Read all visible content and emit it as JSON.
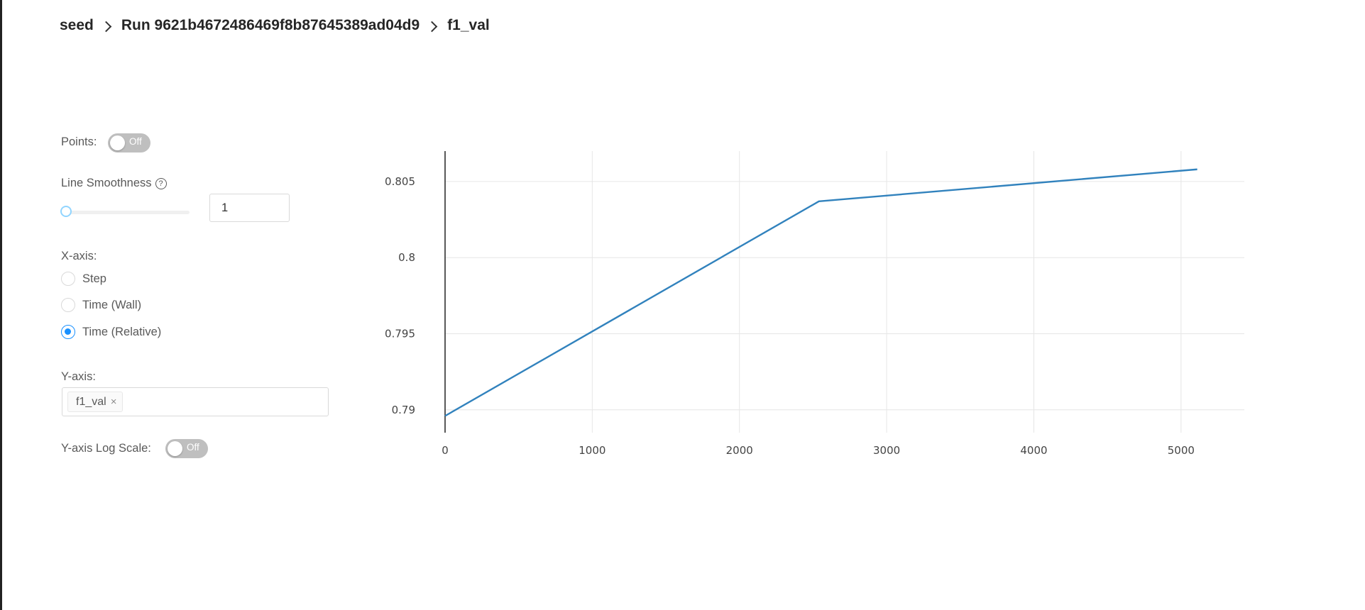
{
  "breadcrumb": {
    "items": [
      "seed",
      "Run 9621b4672486469f8b87645389ad04d9",
      "f1_val"
    ]
  },
  "controls": {
    "points_label": "Points:",
    "points_toggle": "Off",
    "smoothness_label": "Line Smoothness",
    "smoothness_help": "?",
    "smoothness_value": "1",
    "smoothness_slider_level": 0,
    "xaxis_label": "X-axis:",
    "xaxis_options": [
      "Step",
      "Time (Wall)",
      "Time (Relative)"
    ],
    "xaxis_selected": "Time (Relative)",
    "yaxis_label": "Y-axis:",
    "yaxis_tags": [
      "f1_val"
    ],
    "yaxis_tag_close": "×",
    "logscale_label": "Y-axis Log Scale:",
    "logscale_toggle": "Off"
  },
  "colors": {
    "line": "#3182bd",
    "accent": "#1890ff",
    "grid": "#e6e6e6"
  },
  "chart_data": {
    "type": "line",
    "title": "",
    "xlabel": "",
    "ylabel": "",
    "x": [
      0,
      2540,
      5110
    ],
    "series": [
      {
        "values": [
          0.7896,
          0.8037,
          0.8058
        ]
      }
    ],
    "xlim": [
      0,
      5430
    ],
    "ylim": [
      0.7885,
      0.807
    ],
    "xticks": [
      0,
      1000,
      2000,
      3000,
      4000,
      5000
    ],
    "yticks": [
      0.79,
      0.795,
      0.8,
      0.805
    ],
    "xtick_labels": [
      "0",
      "1000",
      "2000",
      "3000",
      "4000",
      "5000"
    ],
    "ytick_labels": [
      "0.79",
      "0.795",
      "0.8",
      "0.805"
    ],
    "grid": true,
    "legend": "none"
  }
}
